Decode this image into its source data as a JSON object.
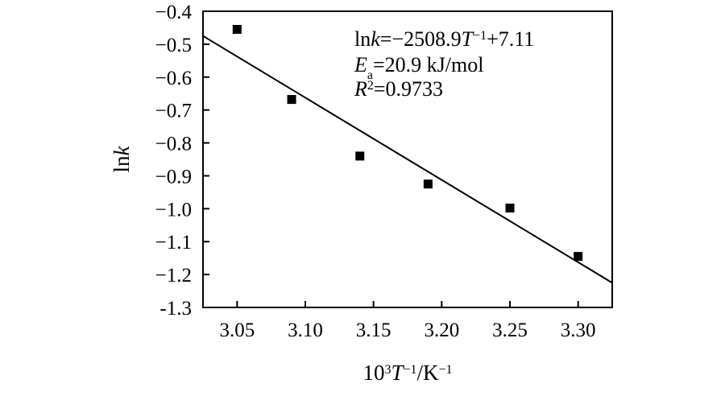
{
  "chart_data": {
    "type": "scatter",
    "title": "",
    "xlabel": {
      "base": "10",
      "sup1": "3",
      "var": "T",
      "sup2": "−1",
      "unit": "/K",
      "sup3": "−1"
    },
    "ylabel": {
      "prefix": "ln",
      "var": "k"
    },
    "xlim": [
      3.025,
      3.325
    ],
    "ylim": [
      -1.3,
      -0.4
    ],
    "x_ticks": [
      3.05,
      3.1,
      3.15,
      3.2,
      3.25,
      3.3
    ],
    "x_tick_labels": [
      "3.05",
      "3.10",
      "3.15",
      "3.20",
      "3.25",
      "3.30"
    ],
    "y_ticks": [
      -0.4,
      -0.5,
      -0.6,
      -0.7,
      -0.8,
      -0.9,
      -1.0,
      -1.1,
      -1.2,
      -1.3
    ],
    "y_tick_labels": [
      "−0.4",
      "−0.5",
      "−0.6",
      "−0.7",
      "−0.8",
      "−0.9",
      "−1.0",
      "−1.1",
      "−1.2",
      "-1.3"
    ],
    "grid": false,
    "series": [
      {
        "type": "scatter",
        "marker": "square",
        "color": "#000000",
        "x": [
          3.05,
          3.09,
          3.14,
          3.19,
          3.25,
          3.3
        ],
        "y": [
          -0.455,
          -0.668,
          -0.84,
          -0.925,
          -0.998,
          -1.145
        ]
      }
    ],
    "fit_line": {
      "color": "#000000",
      "x": [
        3.025,
        3.325
      ],
      "y": [
        -0.475,
        -1.225
      ]
    },
    "annotations": [
      {
        "prefix": "ln",
        "var": "k",
        "mid": "=−2508.9",
        "var2": "T",
        "sup": "−1",
        "suffix": "+7.11"
      },
      {
        "var": "E",
        "sub": "a",
        "suffix": "=20.9 kJ/mol"
      },
      {
        "var": "R",
        "sup": "2",
        "suffix": "=0.9733"
      }
    ]
  }
}
